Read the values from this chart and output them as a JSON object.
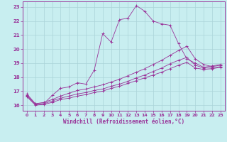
{
  "xlabel": "Windchill (Refroidissement éolien,°C)",
  "background_color": "#c8eef0",
  "grid_color": "#aad4d8",
  "line_color": "#993399",
  "xlim": [
    -0.5,
    23.5
  ],
  "ylim": [
    15.6,
    23.4
  ],
  "xticks": [
    0,
    1,
    2,
    3,
    4,
    5,
    6,
    7,
    8,
    9,
    10,
    11,
    12,
    13,
    14,
    15,
    16,
    17,
    18,
    19,
    20,
    21,
    22,
    23
  ],
  "yticks": [
    16,
    17,
    18,
    19,
    20,
    21,
    22,
    23
  ],
  "series": [
    {
      "x": [
        0,
        1,
        2,
        3,
        4,
        5,
        6,
        7,
        8,
        9,
        10,
        11,
        12,
        13,
        14,
        15,
        16,
        17,
        18,
        19,
        20,
        21,
        22,
        23
      ],
      "y": [
        16.8,
        16.1,
        16.1,
        16.7,
        17.2,
        17.3,
        17.6,
        17.5,
        18.5,
        21.1,
        20.5,
        22.1,
        22.2,
        23.1,
        22.7,
        22.0,
        21.8,
        21.7,
        20.4,
        19.3,
        19.0,
        18.7,
        18.8,
        18.9
      ]
    },
    {
      "x": [
        0,
        1,
        2,
        3,
        4,
        5,
        6,
        7,
        8,
        9,
        10,
        11,
        12,
        13,
        14,
        15,
        16,
        17,
        18,
        19,
        20,
        21,
        22,
        23
      ],
      "y": [
        16.7,
        16.1,
        16.2,
        16.4,
        16.65,
        16.85,
        17.05,
        17.15,
        17.3,
        17.45,
        17.65,
        17.85,
        18.1,
        18.35,
        18.6,
        18.9,
        19.2,
        19.55,
        19.9,
        20.2,
        19.3,
        18.9,
        18.75,
        18.85
      ]
    },
    {
      "x": [
        0,
        1,
        2,
        3,
        4,
        5,
        6,
        7,
        8,
        9,
        10,
        11,
        12,
        13,
        14,
        15,
        16,
        17,
        18,
        19,
        20,
        21,
        22,
        23
      ],
      "y": [
        16.65,
        16.05,
        16.1,
        16.3,
        16.5,
        16.65,
        16.8,
        16.9,
        17.05,
        17.15,
        17.35,
        17.5,
        17.7,
        17.95,
        18.15,
        18.4,
        18.65,
        18.95,
        19.2,
        19.4,
        18.85,
        18.65,
        18.65,
        18.75
      ]
    },
    {
      "x": [
        0,
        1,
        2,
        3,
        4,
        5,
        6,
        7,
        8,
        9,
        10,
        11,
        12,
        13,
        14,
        15,
        16,
        17,
        18,
        19,
        20,
        21,
        22,
        23
      ],
      "y": [
        16.6,
        16.0,
        16.05,
        16.2,
        16.4,
        16.5,
        16.65,
        16.75,
        16.9,
        17.0,
        17.2,
        17.35,
        17.55,
        17.75,
        17.95,
        18.15,
        18.35,
        18.6,
        18.85,
        19.05,
        18.65,
        18.55,
        18.6,
        18.7
      ]
    }
  ]
}
